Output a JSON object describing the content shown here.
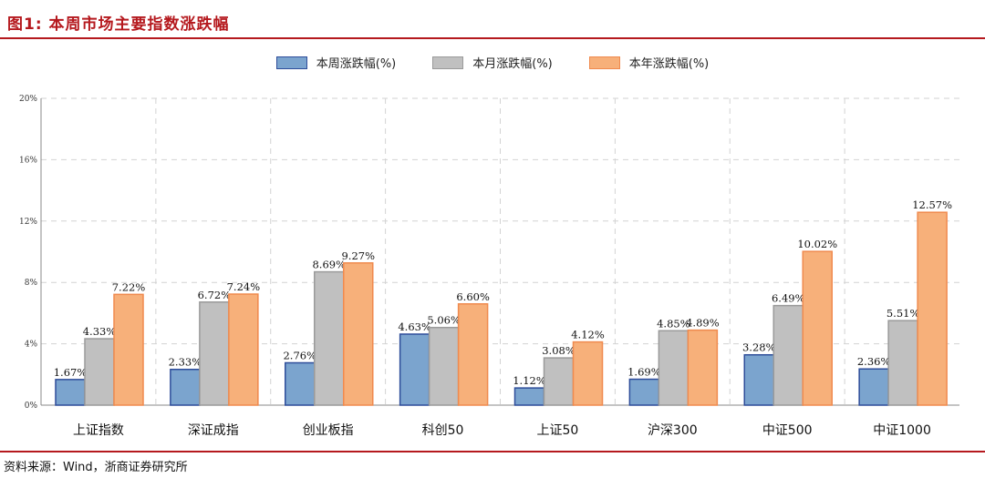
{
  "figure": {
    "title": "图1:  本周市场主要指数涨跌幅",
    "source": "资料来源：Wind，浙商证券研究所"
  },
  "chart_data": {
    "type": "bar",
    "title": "",
    "xlabel": "",
    "ylabel": "",
    "ylim": [
      0,
      20
    ],
    "yticks": [
      0,
      4,
      8,
      12,
      16,
      20
    ],
    "ytick_labels": [
      "0%",
      "4%",
      "8%",
      "12%",
      "16%",
      "20%"
    ],
    "grid": "dashed",
    "legend_position": "top-center",
    "categories": [
      "上证指数",
      "深证成指",
      "创业板指",
      "科创50",
      "上证50",
      "沪深300",
      "中证500",
      "中证1000"
    ],
    "series": [
      {
        "name": "本周涨跌幅(%)",
        "values": [
          1.67,
          2.33,
          2.76,
          4.63,
          1.12,
          1.69,
          3.28,
          2.36
        ],
        "labels": [
          "1.67%",
          "2.33%",
          "2.76%",
          "4.63%",
          "1.12%",
          "1.69%",
          "3.28%",
          "2.36%"
        ],
        "fill": "#7ba4ce",
        "stroke": "#2e4d9a"
      },
      {
        "name": "本月涨跌幅(%)",
        "values": [
          4.33,
          6.72,
          8.69,
          5.06,
          3.08,
          4.85,
          6.49,
          5.51
        ],
        "labels": [
          "4.33%",
          "6.72%",
          "8.69%",
          "5.06%",
          "3.08%",
          "4.85%",
          "6.49%",
          "5.51%"
        ],
        "fill": "#c0c0c0",
        "stroke": "#9a9a9a"
      },
      {
        "name": "本年涨跌幅(%)",
        "values": [
          7.22,
          7.24,
          9.27,
          6.6,
          4.12,
          4.89,
          10.02,
          12.57
        ],
        "labels": [
          "7.22%",
          "7.24%",
          "9.27%",
          "6.60%",
          "4.12%",
          "4.89%",
          "10.02%",
          "12.57%"
        ],
        "fill": "#f7b07a",
        "stroke": "#f08a4e"
      }
    ]
  }
}
